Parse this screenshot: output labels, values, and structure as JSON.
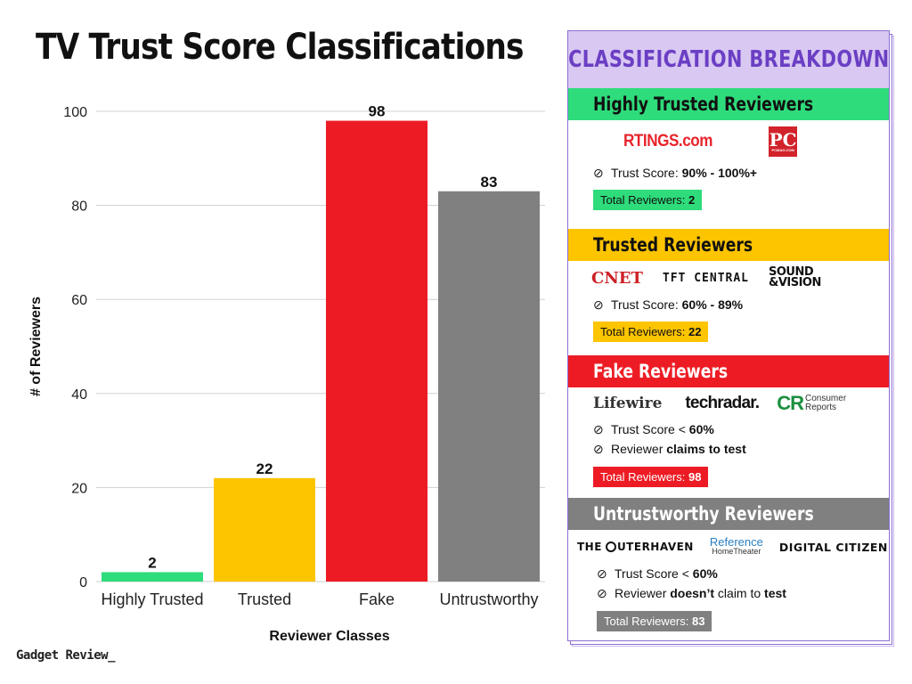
{
  "title": "TV Trust Score Classifications",
  "brand": "Gadget Review_",
  "colors": {
    "green": "#2edc7b",
    "yellow": "#fdc400",
    "red": "#ed1c24",
    "gray": "#808080",
    "purple": "#6b3fc4",
    "lavender": "#d9c8f2"
  },
  "chart_data": {
    "type": "bar",
    "categories": [
      "Highly Trusted",
      "Trusted",
      "Fake",
      "Untrustworthy"
    ],
    "values": [
      2,
      22,
      98,
      83
    ],
    "bar_colors": [
      "#2edc7b",
      "#fdc400",
      "#ed1c24",
      "#808080"
    ],
    "title": "TV Trust Score Classifications",
    "xlabel": "Reviewer Classes",
    "ylabel": "# of Reviewers",
    "ylim": [
      0,
      100
    ],
    "yticks": [
      0,
      20,
      40,
      60,
      80,
      100
    ],
    "grid": true
  },
  "panel": {
    "header": "CLASSIFICATION BREAKDOWN",
    "sections": [
      {
        "title": "Highly Trusted Reviewers",
        "color": "#2edc7b",
        "logos": [
          "RTINGS.com",
          "PC"
        ],
        "logo_sub": "PCMAG.COM",
        "bullets": [
          {
            "prefix": "Trust Score: ",
            "bold": "90% - 100%+",
            "suffix": ""
          }
        ],
        "total_label": "Total Reviewers: ",
        "total_value": "2"
      },
      {
        "title": "Trusted Reviewers",
        "color": "#fdc400",
        "logos": [
          "CNET",
          "TFT CENTRAL",
          "SOUND",
          "&VISION"
        ],
        "bullets": [
          {
            "prefix": "Trust Score: ",
            "bold": "60% - 89%",
            "suffix": ""
          }
        ],
        "total_label": "Total Reviewers: ",
        "total_value": "22"
      },
      {
        "title": "Fake Reviewers",
        "color": "#ed1c24",
        "logos": [
          "Lifewire",
          "techradar.",
          "CR",
          "Consumer",
          "Reports"
        ],
        "bullets": [
          {
            "prefix": "Trust Score < ",
            "bold": "60%",
            "suffix": ""
          },
          {
            "prefix": "Reviewer ",
            "bold": "claims to test",
            "suffix": ""
          }
        ],
        "total_label": "Total Reviewers: ",
        "total_value": "98"
      },
      {
        "title": "Untrustworthy Reviewers",
        "color": "#808080",
        "logos": [
          "THE",
          "UTERHAVEN",
          "Reference",
          "HomeTheater",
          "DIGITAL CITIZEN"
        ],
        "bullets": [
          {
            "prefix": "Trust Score < ",
            "bold": "60%",
            "suffix": ""
          },
          {
            "prefix": "Reviewer ",
            "bold": "doesn’t",
            "suffix": " claim to ",
            "bold2": "test"
          }
        ],
        "total_label": "Total Reviewers: ",
        "total_value": "83"
      }
    ]
  }
}
